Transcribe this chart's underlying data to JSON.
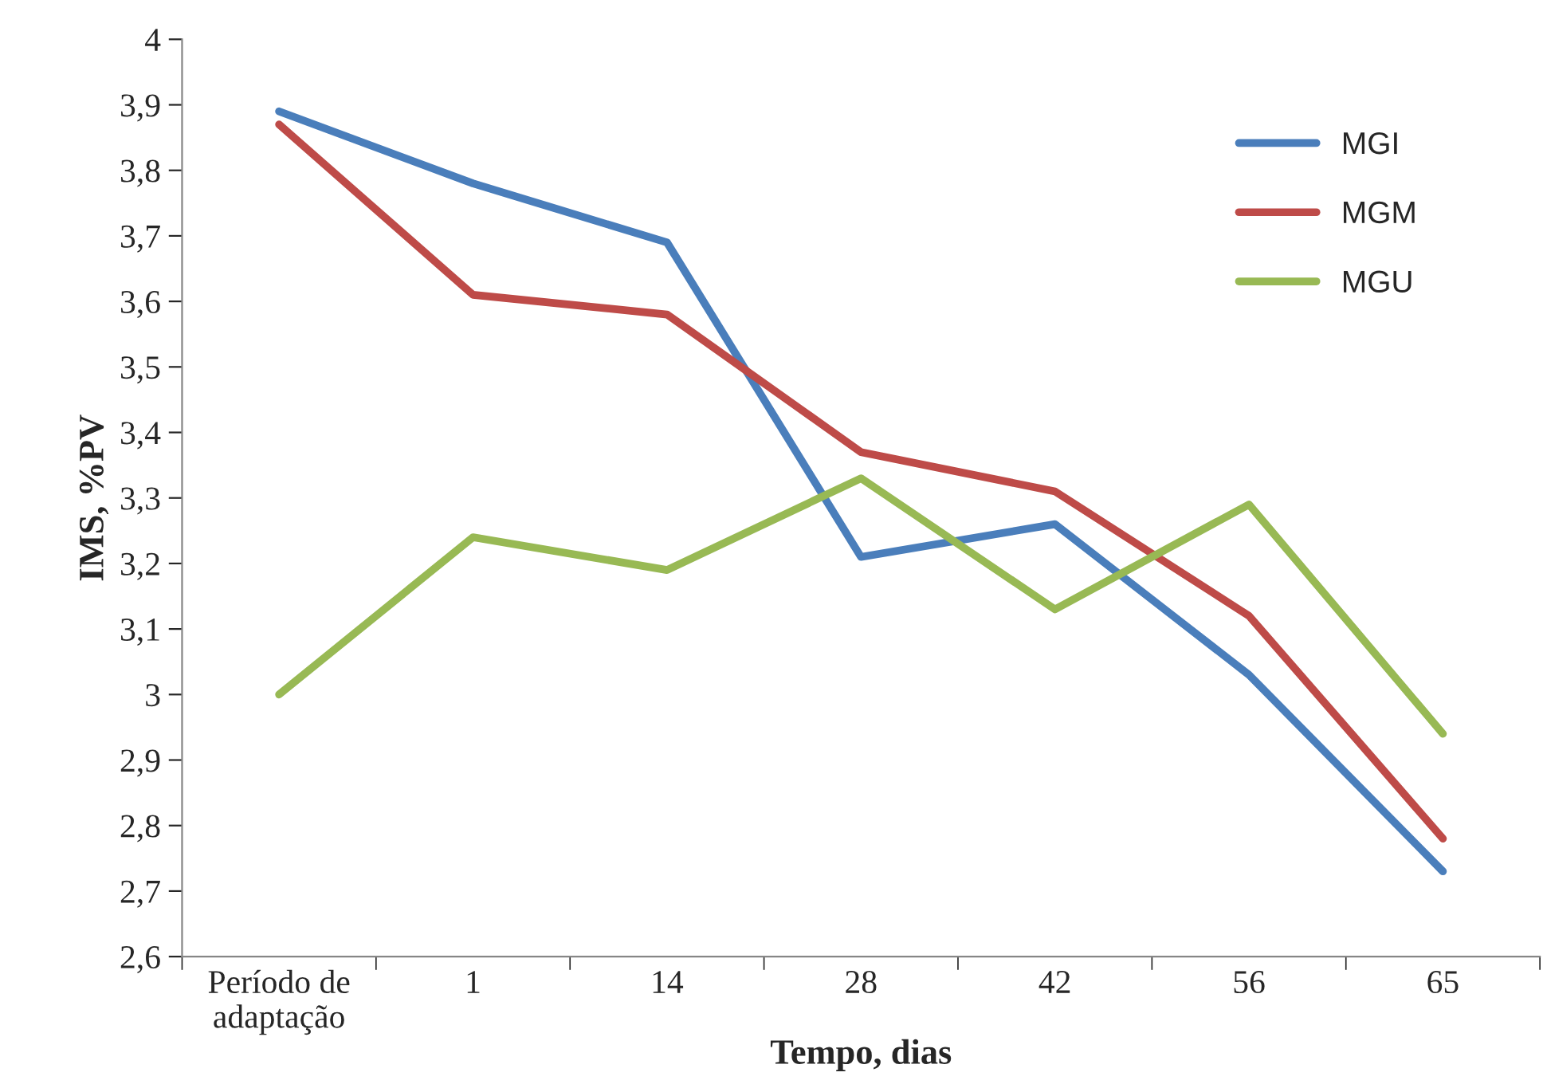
{
  "chart_data": {
    "type": "line",
    "xlabel": "Tempo, dias",
    "ylabel": "IMS, %PV",
    "categories": [
      "Período de\nadaptação",
      "1",
      "14",
      "28",
      "42",
      "56",
      "65"
    ],
    "series": [
      {
        "name": "MGI",
        "color": "#4a7ebb",
        "values": [
          3.89,
          3.78,
          3.69,
          3.21,
          3.26,
          3.03,
          2.73
        ]
      },
      {
        "name": "MGM",
        "color": "#be4b48",
        "values": [
          3.87,
          3.61,
          3.58,
          3.37,
          3.31,
          3.12,
          2.78
        ]
      },
      {
        "name": "MGU",
        "color": "#98b954",
        "values": [
          3.0,
          3.24,
          3.19,
          3.33,
          3.13,
          3.29,
          2.94
        ]
      }
    ],
    "ylim": [
      2.6,
      4
    ],
    "yticks": [
      {
        "value": 2.6,
        "label": "2,6"
      },
      {
        "value": 2.7,
        "label": "2,7"
      },
      {
        "value": 2.8,
        "label": "2,8"
      },
      {
        "value": 2.9,
        "label": "2,9"
      },
      3,
      {
        "value": 3.1,
        "label": "3,1"
      },
      {
        "value": 3.2,
        "label": "3,2"
      },
      {
        "value": 3.3,
        "label": "3,3"
      },
      {
        "value": 3.4,
        "label": "3,4"
      },
      {
        "value": 3.5,
        "label": "3,5"
      },
      {
        "value": 3.6,
        "label": "3,6"
      },
      {
        "value": 3.7,
        "label": "3,7"
      },
      {
        "value": 3.8,
        "label": "3,8"
      },
      {
        "value": 3.9,
        "label": "3,9"
      },
      4
    ],
    "grid": false,
    "legend": "top right",
    "marker": "none",
    "line_style": "solid"
  }
}
